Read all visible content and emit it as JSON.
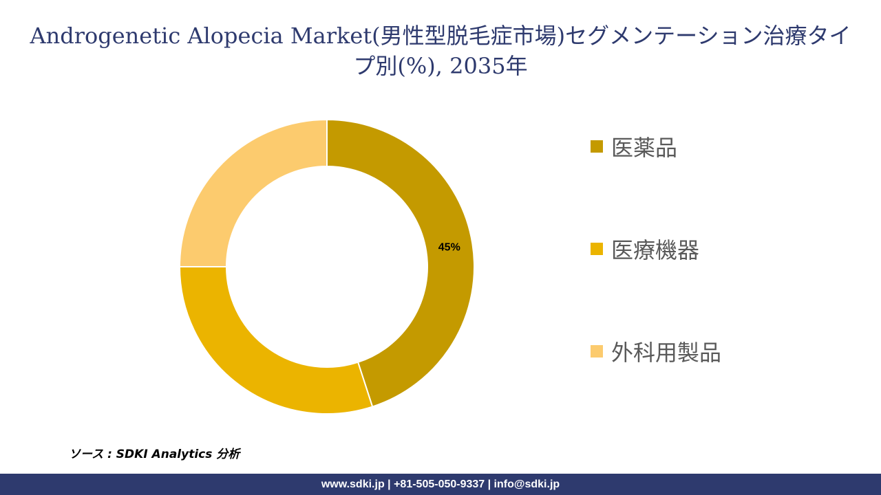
{
  "title": "Androgenetic Alopecia Market(男性型脱毛症市場)セグメンテーション治療タイプ別(%), 2035年",
  "colors": {
    "title": "#2e3a6e",
    "footer_bg": "#2e3a6e",
    "slice_gap": "#ffffff"
  },
  "chart_data": {
    "type": "pie",
    "donut": true,
    "categories": [
      "医薬品",
      "医療機器",
      "外科用製品"
    ],
    "values": [
      45,
      30,
      25
    ],
    "value_unit": "%",
    "data_labels": [
      "45%",
      "",
      ""
    ],
    "colors": [
      "#c49a00",
      "#ebb400",
      "#fccb6e"
    ],
    "start_angle_deg": 0,
    "direction": "clockwise",
    "legend_position": "right"
  },
  "source": "ソース : SDKI Analytics 分析",
  "footer": "www.sdki.jp | +81-505-050-9337 | info@sdki.jp"
}
